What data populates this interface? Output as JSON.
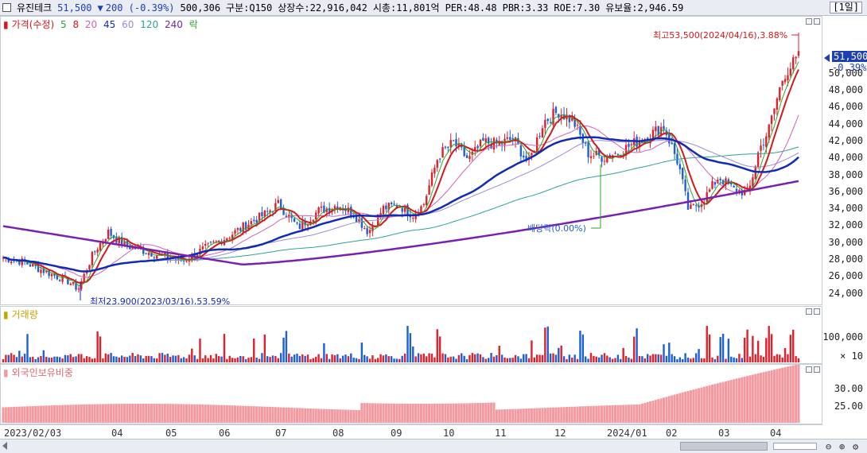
{
  "header": {
    "name": "유진테크",
    "price": "51,500",
    "change_arrow": "▼",
    "change": "200 (-0.39%)",
    "volume": "500,306",
    "segment": "구분:Q150",
    "shares": "상장수:22,916,042",
    "mktcap": "시총:11,801억",
    "per": "PER:48.48",
    "pbr": "PBR:3.33",
    "roe": "ROE:7.30",
    "float": "유보율:2,946.59",
    "period_button": "[1일]"
  },
  "price_panel": {
    "legend": {
      "main": "가격(수정)",
      "ma5": "5",
      "ma8": "8",
      "ma20": "20",
      "ma45": "45",
      "ma60": "60",
      "ma120": "120",
      "ma240": "240",
      "drop": "락"
    },
    "high_note": "최고53,500(2024/04/16),3.88%",
    "low_note": "최저23,900(2023/03/16),53.59%",
    "dividend_note": "배당락(0.00%)",
    "current_price_label": "51,500",
    "current_change_label": "-0.39%",
    "y_ticks": [
      "50,000",
      "48,000",
      "46,000",
      "44,000",
      "42,000",
      "40,000",
      "38,000",
      "36,000",
      "34,000",
      "32,000",
      "30,000",
      "28,000",
      "26,000",
      "24,000"
    ]
  },
  "volume_panel": {
    "title": "거래량",
    "y_ticks": [
      "100,000"
    ],
    "multiplier": "× 10"
  },
  "foreign_panel": {
    "title": "외국인보유비중",
    "y_ticks": [
      "30.00",
      "25.00"
    ]
  },
  "x_axis": {
    "labels": [
      "2023/02/03",
      "04",
      "05",
      "06",
      "07",
      "08",
      "09",
      "10",
      "11",
      "12",
      "2024/01",
      "02",
      "03",
      "04"
    ]
  },
  "colors": {
    "up": "#e0202a",
    "down": "#1c5fd6",
    "ma5": "#2aa72a",
    "ma8": "#d4181c",
    "ma20": "#cf62b8",
    "ma45": "#0f2bb8",
    "ma60": "#a08ad8",
    "ma120": "#2aa596",
    "ma240": "#7a1fb0",
    "foreign": "#f29aa0"
  }
}
